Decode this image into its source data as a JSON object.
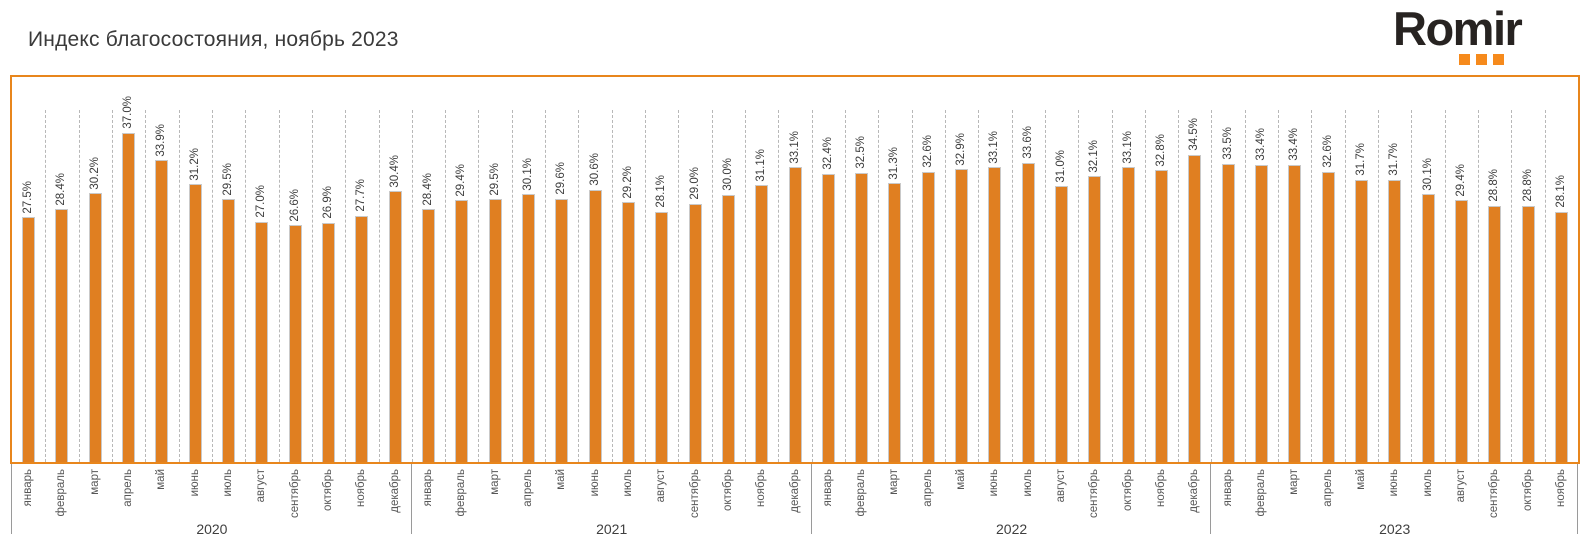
{
  "header": {
    "logo_text": "Romir",
    "logo_text_color": "#272321",
    "logo_dot_color": "#F68A1C"
  },
  "chart_data": {
    "type": "bar",
    "title": "Индекс благосостояния, ноябрь 2023",
    "xlabel": "",
    "ylabel": "",
    "unit": "%",
    "bar_color": "#E07F21",
    "plot_border_color": "#E8861C",
    "grid": "dashed vertical separators between months",
    "legend": "none",
    "ylim": [
      0,
      43
    ],
    "value_label_format": "one decimal, percent sign",
    "groups": [
      {
        "year": "2020",
        "categories": [
          "январь",
          "февраль",
          "март",
          "апрель",
          "май",
          "июнь",
          "июль",
          "август",
          "сентябрь",
          "октябрь",
          "ноябрь",
          "декабрь"
        ],
        "values": [
          27.5,
          28.4,
          30.2,
          37.0,
          33.9,
          31.2,
          29.5,
          27.0,
          26.6,
          26.9,
          27.7,
          30.4
        ]
      },
      {
        "year": "2021",
        "categories": [
          "январь",
          "февраль",
          "март",
          "апрель",
          "май",
          "июнь",
          "июль",
          "август",
          "сентябрь",
          "октябрь",
          "ноябрь",
          "декабрь"
        ],
        "values": [
          28.4,
          29.4,
          29.5,
          30.1,
          29.6,
          30.6,
          29.2,
          28.1,
          29.0,
          30.0,
          31.1,
          33.1
        ]
      },
      {
        "year": "2022",
        "categories": [
          "январь",
          "февраль",
          "март",
          "апрель",
          "май",
          "июнь",
          "июль",
          "август",
          "сентябрь",
          "октябрь",
          "ноябрь",
          "декабрь"
        ],
        "values": [
          32.4,
          32.5,
          31.3,
          32.6,
          32.9,
          33.1,
          33.6,
          31.0,
          32.1,
          33.1,
          32.8,
          34.5
        ]
      },
      {
        "year": "2023",
        "categories": [
          "январь",
          "февраль",
          "март",
          "апрель",
          "май",
          "июнь",
          "июль",
          "август",
          "сентябрь",
          "октябрь",
          "ноябрь"
        ],
        "values": [
          33.5,
          33.4,
          33.4,
          32.6,
          31.7,
          31.7,
          30.1,
          29.4,
          28.8,
          28.8,
          28.1
        ]
      }
    ]
  }
}
